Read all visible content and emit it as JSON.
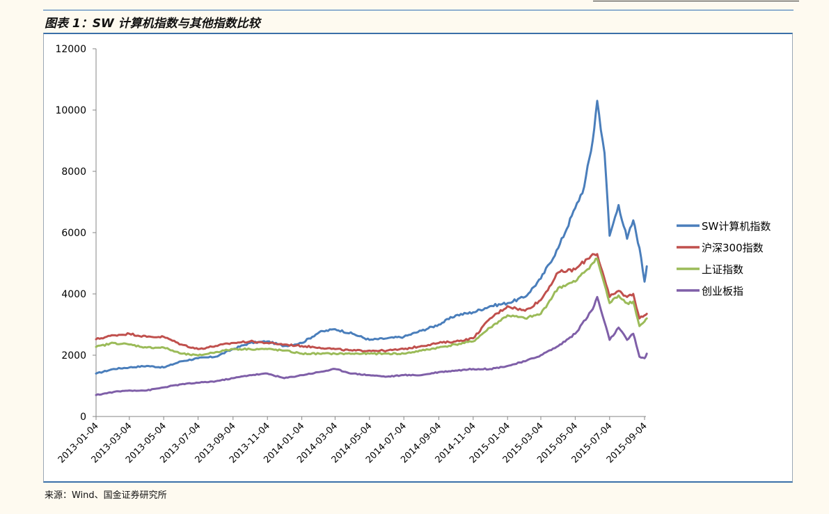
{
  "figure_title": "图表 1：SW 计算机指数与其他指数比较",
  "source_note": "来源：Wind、国金证券研究所",
  "chart_data": {
    "type": "line",
    "title": "",
    "xlabel": "",
    "ylabel": "",
    "ylim": [
      0,
      12000
    ],
    "yticks": [
      0,
      2000,
      4000,
      6000,
      8000,
      10000,
      12000
    ],
    "x_tick_labels": [
      "2013-01-04",
      "2013-03-04",
      "2013-05-04",
      "2013-07-04",
      "2013-09-04",
      "2013-11-04",
      "2014-01-04",
      "2014-03-04",
      "2014-05-04",
      "2014-07-04",
      "2014-09-04",
      "2014-11-04",
      "2015-01-04",
      "2015-03-04",
      "2015-05-04",
      "2015-07-04",
      "2015-09-04"
    ],
    "grid": false,
    "legend_position": "right",
    "series": [
      {
        "name": "SW计算机指数",
        "color": "#4a7ebb",
        "x": [
          "2013-01-04",
          "2013-02-04",
          "2013-03-04",
          "2013-04-04",
          "2013-05-04",
          "2013-06-04",
          "2013-07-04",
          "2013-08-04",
          "2013-09-04",
          "2013-10-04",
          "2013-11-04",
          "2013-12-04",
          "2014-01-04",
          "2014-02-04",
          "2014-03-04",
          "2014-04-04",
          "2014-05-04",
          "2014-06-04",
          "2014-07-04",
          "2014-08-04",
          "2014-09-04",
          "2014-10-04",
          "2014-11-04",
          "2014-12-04",
          "2015-01-04",
          "2015-02-04",
          "2015-03-04",
          "2015-04-04",
          "2015-05-04",
          "2015-05-20",
          "2015-06-04",
          "2015-06-12",
          "2015-06-25",
          "2015-07-04",
          "2015-07-20",
          "2015-08-04",
          "2015-08-15",
          "2015-08-26",
          "2015-09-04",
          "2015-09-08"
        ],
        "values": [
          1400,
          1550,
          1600,
          1650,
          1600,
          1800,
          1900,
          1950,
          2200,
          2400,
          2450,
          2300,
          2400,
          2750,
          2850,
          2700,
          2500,
          2550,
          2600,
          2800,
          3000,
          3300,
          3400,
          3600,
          3700,
          3900,
          4500,
          5500,
          6800,
          7500,
          9000,
          10300,
          8600,
          5900,
          6900,
          5800,
          6400,
          5500,
          4400,
          4900
        ]
      },
      {
        "name": "沪深300指数",
        "color": "#c0504d",
        "x": [
          "2013-01-04",
          "2013-02-04",
          "2013-03-04",
          "2013-04-04",
          "2013-05-04",
          "2013-06-04",
          "2013-07-04",
          "2013-08-04",
          "2013-09-04",
          "2013-10-04",
          "2013-11-04",
          "2013-12-04",
          "2014-01-04",
          "2014-02-04",
          "2014-03-04",
          "2014-04-04",
          "2014-05-04",
          "2014-06-04",
          "2014-07-04",
          "2014-08-04",
          "2014-09-04",
          "2014-10-04",
          "2014-11-04",
          "2014-12-04",
          "2015-01-04",
          "2015-02-04",
          "2015-03-04",
          "2015-04-04",
          "2015-05-04",
          "2015-06-04",
          "2015-06-12",
          "2015-07-04",
          "2015-07-20",
          "2015-08-04",
          "2015-08-15",
          "2015-08-26",
          "2015-09-04",
          "2015-09-08"
        ],
        "values": [
          2520,
          2650,
          2700,
          2600,
          2600,
          2350,
          2200,
          2300,
          2400,
          2450,
          2400,
          2350,
          2300,
          2250,
          2200,
          2150,
          2150,
          2150,
          2200,
          2300,
          2400,
          2450,
          2550,
          3200,
          3600,
          3450,
          3800,
          4700,
          4800,
          5300,
          5300,
          3900,
          4100,
          3900,
          4000,
          3200,
          3300,
          3350
        ]
      },
      {
        "name": "上证指数",
        "color": "#9bbb59",
        "x": [
          "2013-01-04",
          "2013-02-04",
          "2013-03-04",
          "2013-04-04",
          "2013-05-04",
          "2013-06-04",
          "2013-07-04",
          "2013-08-04",
          "2013-09-04",
          "2013-10-04",
          "2013-11-04",
          "2013-12-04",
          "2014-01-04",
          "2014-02-04",
          "2014-03-04",
          "2014-04-04",
          "2014-05-04",
          "2014-06-04",
          "2014-07-04",
          "2014-08-04",
          "2014-09-04",
          "2014-10-04",
          "2014-11-04",
          "2014-12-04",
          "2015-01-04",
          "2015-02-04",
          "2015-03-04",
          "2015-04-04",
          "2015-05-04",
          "2015-06-04",
          "2015-06-12",
          "2015-07-04",
          "2015-07-20",
          "2015-08-04",
          "2015-08-15",
          "2015-08-26",
          "2015-09-04",
          "2015-09-08"
        ],
        "values": [
          2270,
          2400,
          2350,
          2250,
          2250,
          2050,
          1990,
          2100,
          2200,
          2200,
          2200,
          2150,
          2050,
          2050,
          2050,
          2050,
          2050,
          2050,
          2050,
          2150,
          2250,
          2350,
          2450,
          2900,
          3300,
          3200,
          3350,
          4200,
          4400,
          5000,
          5150,
          3700,
          3950,
          3700,
          3750,
          2950,
          3100,
          3200
        ]
      },
      {
        "name": "创业板指",
        "color": "#7f5fa8",
        "x": [
          "2013-01-04",
          "2013-02-04",
          "2013-03-04",
          "2013-04-04",
          "2013-05-04",
          "2013-06-04",
          "2013-07-04",
          "2013-08-04",
          "2013-09-04",
          "2013-10-04",
          "2013-11-04",
          "2013-12-04",
          "2014-01-04",
          "2014-02-04",
          "2014-03-04",
          "2014-04-04",
          "2014-05-04",
          "2014-06-04",
          "2014-07-04",
          "2014-08-04",
          "2014-09-04",
          "2014-10-04",
          "2014-11-04",
          "2014-12-04",
          "2015-01-04",
          "2015-02-04",
          "2015-03-04",
          "2015-04-04",
          "2015-05-04",
          "2015-06-04",
          "2015-06-12",
          "2015-07-04",
          "2015-07-20",
          "2015-08-04",
          "2015-08-15",
          "2015-08-26",
          "2015-09-04",
          "2015-09-08"
        ],
        "values": [
          700,
          800,
          850,
          850,
          950,
          1050,
          1100,
          1150,
          1250,
          1350,
          1400,
          1250,
          1350,
          1450,
          1550,
          1400,
          1350,
          1300,
          1350,
          1350,
          1450,
          1500,
          1550,
          1550,
          1650,
          1800,
          2000,
          2300,
          2700,
          3500,
          3900,
          2500,
          2900,
          2500,
          2700,
          1950,
          1900,
          2050
        ]
      }
    ]
  }
}
